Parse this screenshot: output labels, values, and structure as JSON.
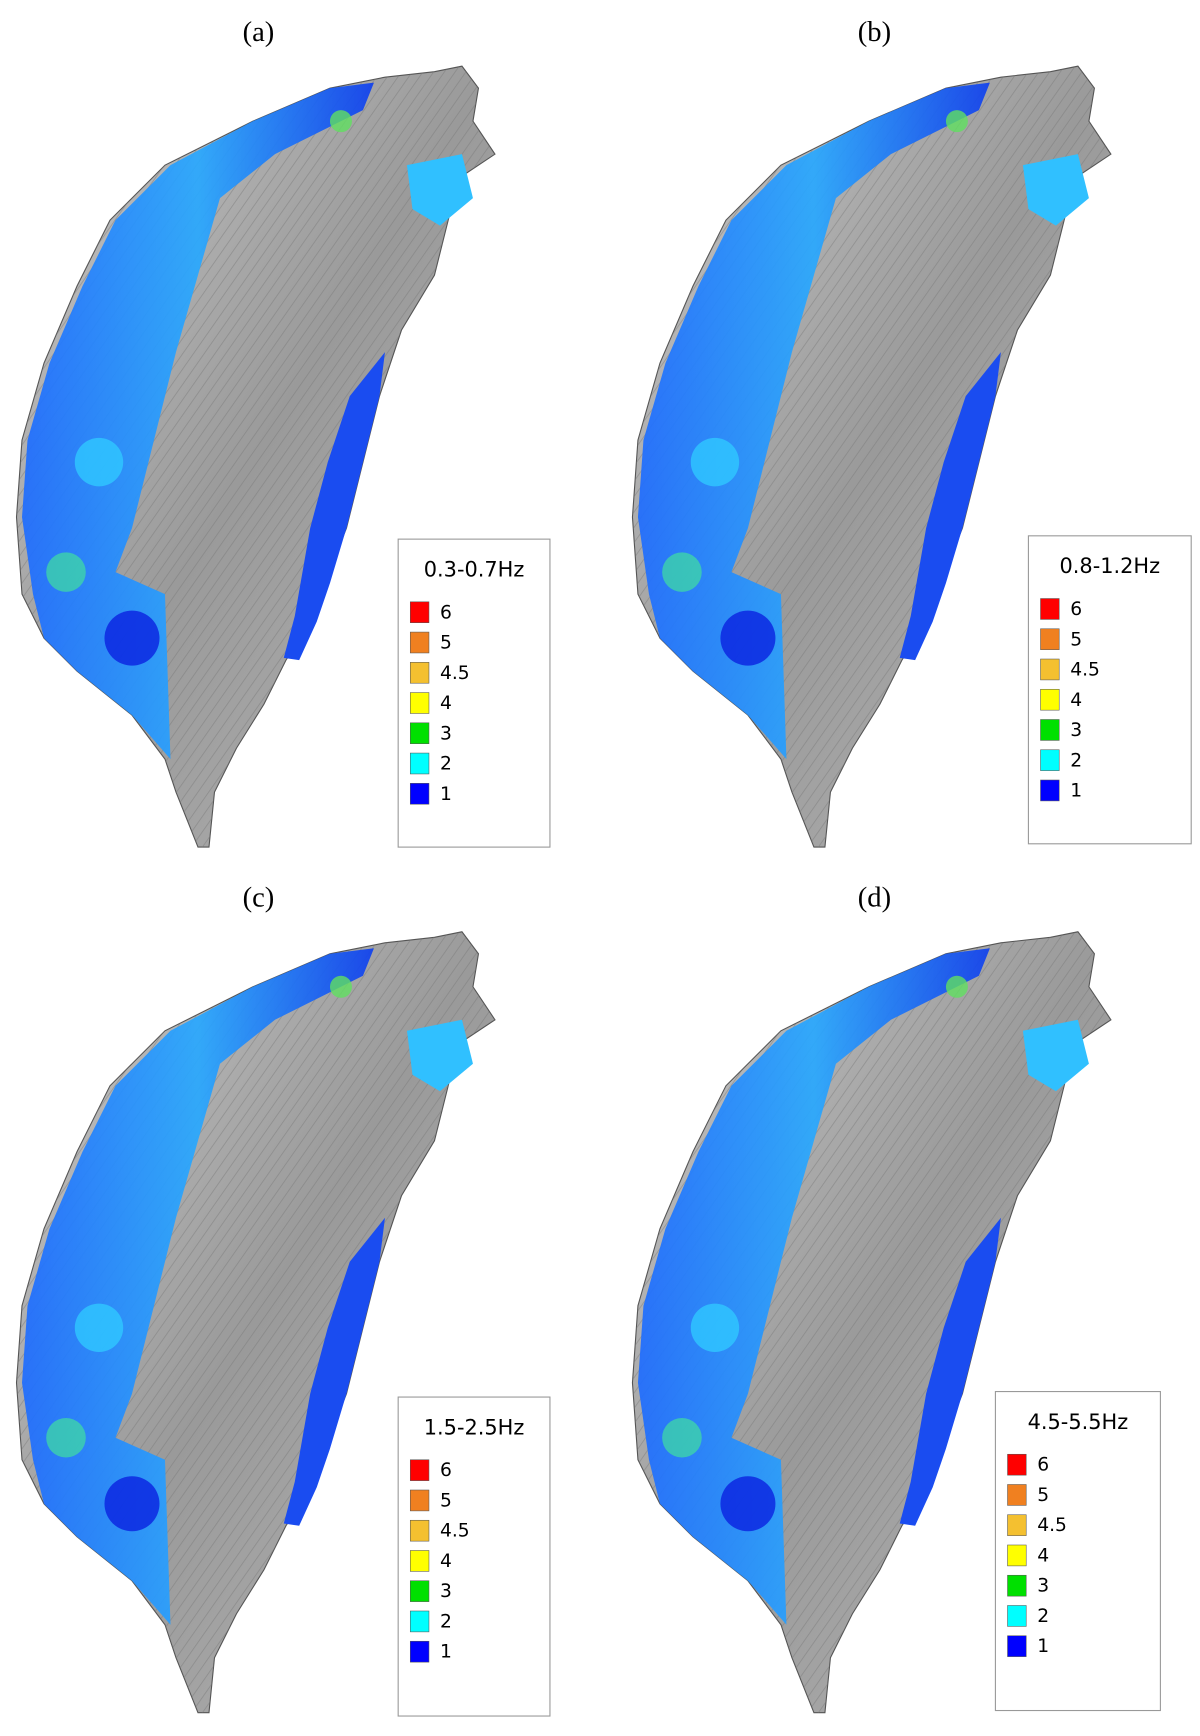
{
  "panels": [
    {
      "label": "(a)",
      "legend": {
        "title": "0.3-0.7Hz",
        "items": [
          {
            "label": "6",
            "color": "#ff0000"
          },
          {
            "label": "5",
            "color": "#f08020"
          },
          {
            "label": "4.5",
            "color": "#f4c030"
          },
          {
            "label": "4",
            "color": "#ffff00"
          },
          {
            "label": "3",
            "color": "#00e000"
          },
          {
            "label": "2",
            "color": "#00ffff"
          },
          {
            "label": "1",
            "color": "#0000ff"
          }
        ]
      }
    },
    {
      "label": "(b)",
      "legend": {
        "title": "0.8-1.2Hz",
        "items": [
          {
            "label": "6",
            "color": "#ff0000"
          },
          {
            "label": "5",
            "color": "#f08020"
          },
          {
            "label": "4.5",
            "color": "#f4c030"
          },
          {
            "label": "4",
            "color": "#ffff00"
          },
          {
            "label": "3",
            "color": "#00e000"
          },
          {
            "label": "2",
            "color": "#00ffff"
          },
          {
            "label": "1",
            "color": "#0000ff"
          }
        ]
      }
    },
    {
      "label": "(c)",
      "legend": {
        "title": "1.5-2.5Hz",
        "items": [
          {
            "label": "6",
            "color": "#ff0000"
          },
          {
            "label": "5",
            "color": "#f08020"
          },
          {
            "label": "4.5",
            "color": "#f4c030"
          },
          {
            "label": "4",
            "color": "#ffff00"
          },
          {
            "label": "3",
            "color": "#00e000"
          },
          {
            "label": "2",
            "color": "#00ffff"
          },
          {
            "label": "1",
            "color": "#0000ff"
          }
        ]
      }
    },
    {
      "label": "(d)",
      "legend": {
        "title": "4.5-5.5Hz",
        "items": [
          {
            "label": "6",
            "color": "#ff0000"
          },
          {
            "label": "5",
            "color": "#f08020"
          },
          {
            "label": "4.5",
            "color": "#f4c030"
          },
          {
            "label": "4",
            "color": "#ffff00"
          },
          {
            "label": "3",
            "color": "#00e000"
          },
          {
            "label": "2",
            "color": "#00ffff"
          },
          {
            "label": "1",
            "color": "#0000ff"
          }
        ]
      }
    }
  ]
}
